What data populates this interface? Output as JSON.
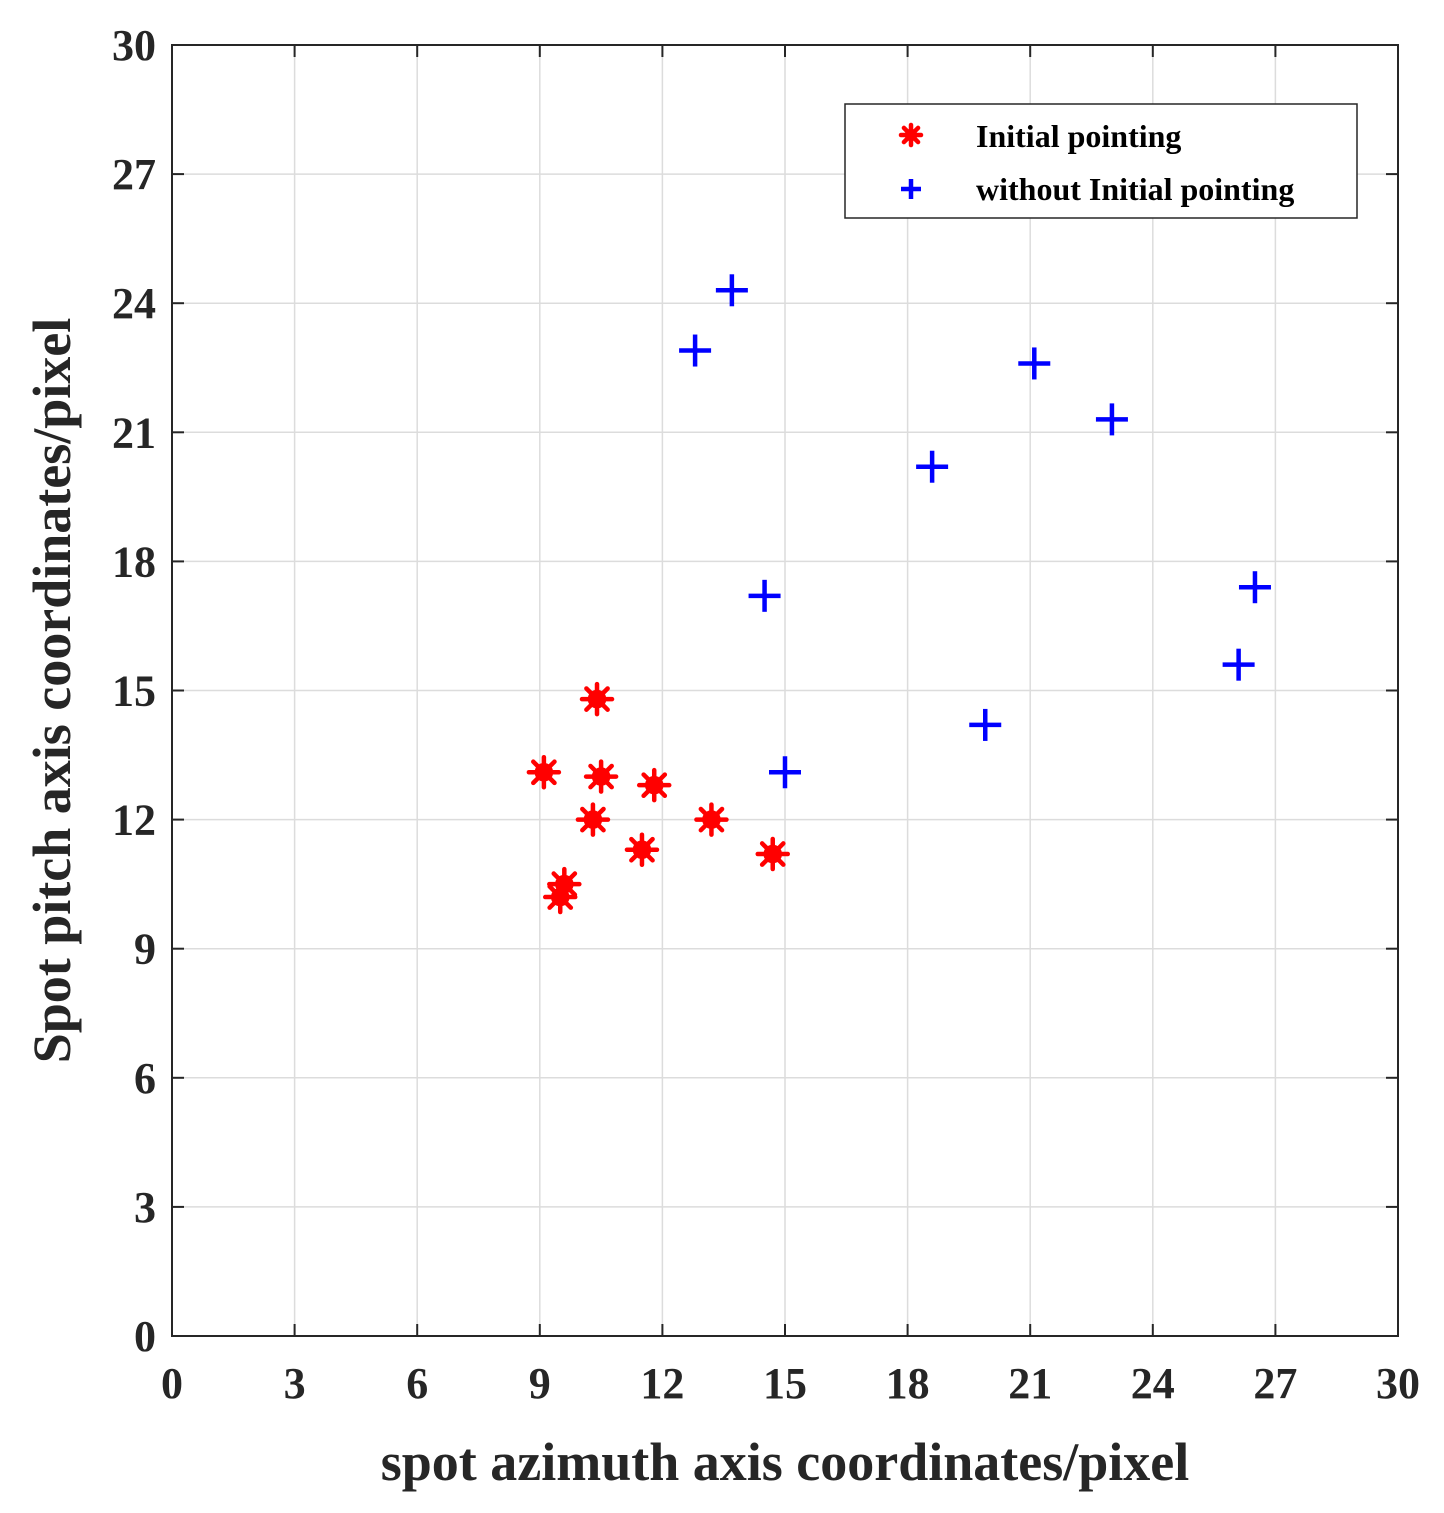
{
  "chart_data": {
    "type": "scatter",
    "title": "",
    "xlabel": "spot azimuth axis coordinates/pixel",
    "ylabel": "Spot pitch axis coordinates/pixel",
    "xlim": [
      0,
      30
    ],
    "ylim": [
      0,
      30
    ],
    "xticks": [
      "0",
      "3",
      "6",
      "9",
      "12",
      "15",
      "18",
      "21",
      "24",
      "27",
      "30"
    ],
    "yticks": [
      "0",
      "3",
      "6",
      "9",
      "12",
      "15",
      "18",
      "21",
      "24",
      "27",
      "30"
    ],
    "grid": true,
    "legend_position": "top-right",
    "series": [
      {
        "name": "Initial pointing",
        "marker": "asterisk",
        "color": "#ff0000",
        "points": [
          {
            "x": 10.4,
            "y": 14.8
          },
          {
            "x": 9.1,
            "y": 13.1
          },
          {
            "x": 10.5,
            "y": 13.0
          },
          {
            "x": 11.8,
            "y": 12.8
          },
          {
            "x": 10.3,
            "y": 12.0
          },
          {
            "x": 13.2,
            "y": 12.0
          },
          {
            "x": 11.5,
            "y": 11.3
          },
          {
            "x": 14.7,
            "y": 11.2
          },
          {
            "x": 9.6,
            "y": 10.5
          },
          {
            "x": 9.5,
            "y": 10.2
          }
        ]
      },
      {
        "name": "without Initial pointing",
        "marker": "plus",
        "color": "#0000ff",
        "points": [
          {
            "x": 13.7,
            "y": 24.3
          },
          {
            "x": 12.8,
            "y": 22.9
          },
          {
            "x": 21.1,
            "y": 22.6
          },
          {
            "x": 23.0,
            "y": 21.3
          },
          {
            "x": 18.6,
            "y": 20.2
          },
          {
            "x": 26.5,
            "y": 17.4
          },
          {
            "x": 14.5,
            "y": 17.2
          },
          {
            "x": 26.1,
            "y": 15.6
          },
          {
            "x": 19.9,
            "y": 14.2
          },
          {
            "x": 15.0,
            "y": 13.1
          }
        ]
      }
    ]
  }
}
